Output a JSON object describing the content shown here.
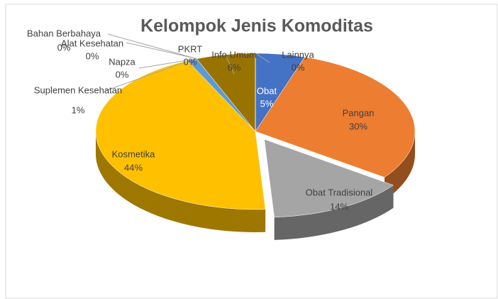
{
  "chart_data": {
    "type": "pie3d",
    "title": "Kelompok Jenis Komoditas",
    "categories": [
      "Obat",
      "Pangan",
      "Obat Tradisional",
      "Kosmetika",
      "Suplemen Kesehatan",
      "Napza",
      "Alat Kesehatan",
      "Bahan Berbahaya",
      "PKRT",
      "Info Umum",
      "Lainnya"
    ],
    "values": [
      5,
      30,
      14,
      44,
      1,
      0,
      0,
      0,
      0,
      6,
      0
    ],
    "value_labels": [
      "5%",
      "30%",
      "14%",
      "44%",
      "1%",
      "0%",
      "0%",
      "0%",
      "0%",
      "6%",
      "0%"
    ],
    "colors": [
      "#4472c4",
      "#ed7d31",
      "#a5a5a5",
      "#ffc000",
      "#5b9bd5",
      "#70ad47",
      "#264478",
      "#9e480e",
      "#636363",
      "#997300",
      "#255e91"
    ],
    "explode": [
      "Obat Tradisional"
    ]
  }
}
